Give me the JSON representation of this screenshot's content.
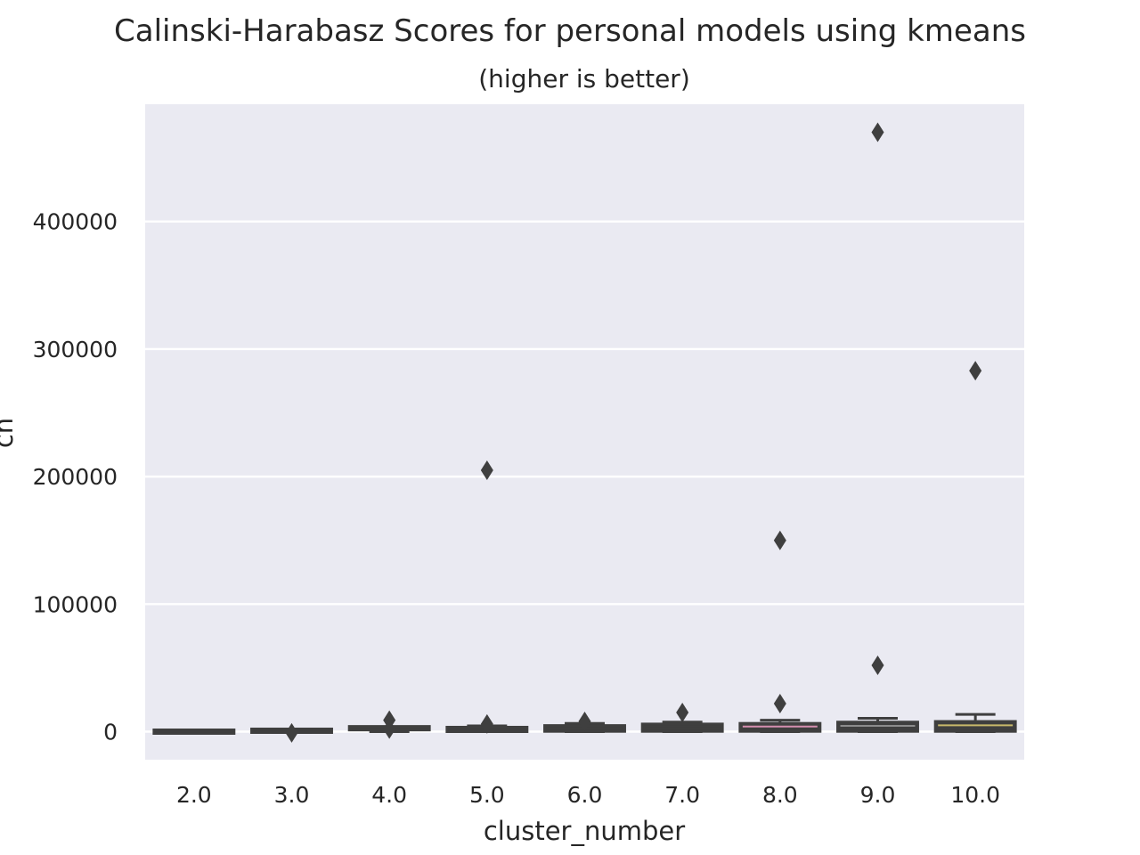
{
  "chart_data": {
    "type": "box",
    "title": "Calinski-Harabasz Scores for personal models using kmeans",
    "subtitle": "(higher is better)",
    "xlabel": "cluster_number",
    "ylabel": "ch",
    "categories": [
      "2.0",
      "3.0",
      "4.0",
      "5.0",
      "6.0",
      "7.0",
      "8.0",
      "9.0",
      "10.0"
    ],
    "ylim": [
      -22000,
      492000
    ],
    "yticks": [
      0,
      100000,
      200000,
      300000,
      400000
    ],
    "ytick_labels": [
      "0",
      "100000",
      "200000",
      "300000",
      "400000"
    ],
    "grid": true,
    "legend": "none",
    "colors": {
      "background": "#eaeaf2",
      "grid": "#ffffff",
      "box_edge": "#3f3f3f",
      "flier": "#3f3f3f",
      "median_8": "#d58fb0",
      "median_9": "#8c8c8c",
      "median_10": "#c8b96a"
    },
    "boxes": [
      {
        "category": "2.0",
        "min": -400,
        "q1": -400,
        "median": -200,
        "q3": 0,
        "max": 200,
        "fliers": []
      },
      {
        "category": "3.0",
        "min": -700,
        "q1": -200,
        "median": 200,
        "q3": 700,
        "max": 1500,
        "fliers": [
          -1000
        ]
      },
      {
        "category": "4.0",
        "min": 0,
        "q1": 0,
        "median": 1200,
        "q3": 2700,
        "max": 3500,
        "fliers": [
          2000,
          9000
        ]
      },
      {
        "category": "5.0",
        "min": 0,
        "q1": 0,
        "median": 2000,
        "q3": 3500,
        "max": 4500,
        "fliers": [
          6000,
          205000
        ]
      },
      {
        "category": "6.0",
        "min": 0,
        "q1": 200,
        "median": 2500,
        "q3": 4800,
        "max": 6500,
        "fliers": [
          8000
        ]
      },
      {
        "category": "7.0",
        "min": 0,
        "q1": 200,
        "median": 3000,
        "q3": 6000,
        "max": 7500,
        "fliers": [
          15000
        ]
      },
      {
        "category": "8.0",
        "min": 0,
        "q1": 200,
        "median": 4000,
        "q3": 6500,
        "max": 9000,
        "fliers": [
          22000,
          150000
        ]
      },
      {
        "category": "9.0",
        "min": 0,
        "q1": 200,
        "median": 4500,
        "q3": 7500,
        "max": 10500,
        "fliers": [
          52000,
          470000
        ]
      },
      {
        "category": "10.0",
        "min": 0,
        "q1": 200,
        "median": 5000,
        "q3": 8000,
        "max": 13500,
        "fliers": [
          283000
        ]
      }
    ]
  }
}
